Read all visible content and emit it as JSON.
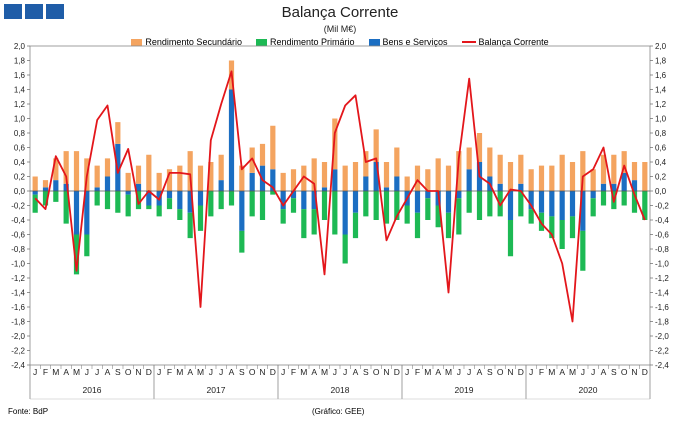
{
  "header": {
    "title": "Balança Corrente",
    "subtitle": "(Mil M€)"
  },
  "footer": {
    "source": "Fonte: BdP",
    "credit": "(Gráfico: GEE)"
  },
  "colors": {
    "secundario": "#f4a460",
    "primario": "#1db954",
    "bens": "#1b6ec2",
    "balanca": "#e3161b",
    "logo": "#1f5da8"
  },
  "chart_data": {
    "type": "bar",
    "title": "Balança Corrente",
    "subtitle": "(Mil M€)",
    "ylim": [
      -2.4,
      2.0
    ],
    "y_ticks": [
      "2,0",
      "1,8",
      "1,6",
      "1,4",
      "1,2",
      "1,0",
      "0,8",
      "0,6",
      "0,4",
      "0,2",
      "0,0",
      "-0,2",
      "-0,4",
      "-0,6",
      "-0,8",
      "-1,0",
      "-1,2",
      "-1,4",
      "-1,6",
      "-1,8",
      "-2,0",
      "-2,2",
      "-2,4"
    ],
    "month_labels": [
      "J",
      "F",
      "M",
      "A",
      "M",
      "J",
      "J",
      "A",
      "S",
      "O",
      "N",
      "D"
    ],
    "years": [
      "2016",
      "2017",
      "2018",
      "2019",
      "2020"
    ],
    "legend": [
      "Rendimento Secundário",
      "Rendimento Primário",
      "Bens e Serviços",
      "Balança Corrente"
    ],
    "series": [
      {
        "name": "Rendimento Secundário",
        "kind": "bar",
        "values": [
          0.2,
          0.1,
          0.3,
          0.45,
          0.55,
          0.45,
          0.3,
          0.25,
          0.3,
          0.25,
          0.25,
          0.5,
          0.25,
          0.3,
          0.35,
          0.55,
          0.35,
          0.4,
          0.35,
          0.4,
          0.35,
          0.35,
          0.3,
          0.6,
          0.25,
          0.3,
          0.35,
          0.45,
          0.35,
          0.7,
          0.35,
          0.4,
          0.35,
          0.45,
          0.35,
          0.4,
          0.2,
          0.35,
          0.3,
          0.45,
          0.35,
          0.55,
          0.3,
          0.4,
          0.4,
          0.4,
          0.4,
          0.4,
          0.3,
          0.35,
          0.35,
          0.5,
          0.4,
          0.55,
          0.3,
          0.4,
          0.4,
          0.3,
          0.25,
          0.4
        ]
      },
      {
        "name": "Rendimento Primário",
        "kind": "bar",
        "values": [
          -0.25,
          -0.2,
          -0.15,
          -0.45,
          -0.55,
          -0.3,
          -0.2,
          -0.25,
          -0.3,
          -0.3,
          -0.25,
          -0.05,
          -0.15,
          -0.15,
          -0.15,
          -0.35,
          -0.35,
          -0.35,
          -0.25,
          -0.2,
          -0.3,
          -0.35,
          -0.4,
          -0.05,
          -0.2,
          -0.2,
          -0.4,
          -0.35,
          -0.4,
          -0.6,
          -0.4,
          -0.35,
          -0.35,
          -0.4,
          -0.45,
          -0.4,
          -0.25,
          -0.35,
          -0.3,
          -0.3,
          -0.35,
          -0.5,
          -0.3,
          -0.4,
          -0.35,
          -0.35,
          -0.5,
          -0.35,
          -0.2,
          -0.25,
          -0.3,
          -0.4,
          -0.3,
          -0.55,
          -0.25,
          -0.2,
          -0.25,
          -0.2,
          -0.3,
          -0.4
        ]
      },
      {
        "name": "Bens e Serviços",
        "kind": "bar",
        "values": [
          -0.05,
          0.05,
          0.15,
          0.1,
          -0.6,
          -0.6,
          0.05,
          0.2,
          0.65,
          -0.05,
          0.1,
          -0.2,
          -0.2,
          -0.1,
          -0.25,
          -0.3,
          -0.2,
          0.0,
          0.15,
          1.4,
          -0.55,
          0.25,
          0.35,
          0.3,
          -0.25,
          -0.1,
          -0.25,
          -0.25,
          0.05,
          0.3,
          -0.6,
          -0.3,
          0.2,
          0.4,
          0.05,
          0.2,
          -0.2,
          -0.3,
          -0.1,
          -0.2,
          -0.3,
          -0.1,
          0.3,
          0.4,
          0.2,
          0.1,
          -0.4,
          0.1,
          -0.25,
          -0.3,
          -0.35,
          -0.4,
          -0.35,
          -0.55,
          -0.1,
          0.1,
          0.1,
          0.25,
          0.15,
          0.0
        ]
      },
      {
        "name": "Balança Corrente",
        "kind": "line",
        "values": [
          -0.1,
          -0.25,
          0.48,
          0.2,
          -1.1,
          0.2,
          0.98,
          1.18,
          0.25,
          0.58,
          -0.18,
          0.0,
          -0.12,
          0.25,
          0.25,
          0.23,
          -1.6,
          0.7,
          1.2,
          1.65,
          0.3,
          0.45,
          0.15,
          0.05,
          -0.2,
          0.0,
          0.2,
          0.1,
          -1.15,
          0.8,
          1.18,
          1.32,
          0.4,
          0.45,
          -0.68,
          -0.35,
          -0.1,
          0.15,
          0.0,
          0.0,
          -1.4,
          0.45,
          1.55,
          0.2,
          0.1,
          -0.2,
          0.02,
          0.0,
          -0.2,
          -0.45,
          -0.6,
          -1.0,
          -1.8,
          0.2,
          0.3,
          0.6,
          -0.15,
          0.35,
          -0.05,
          -0.4
        ]
      }
    ]
  }
}
